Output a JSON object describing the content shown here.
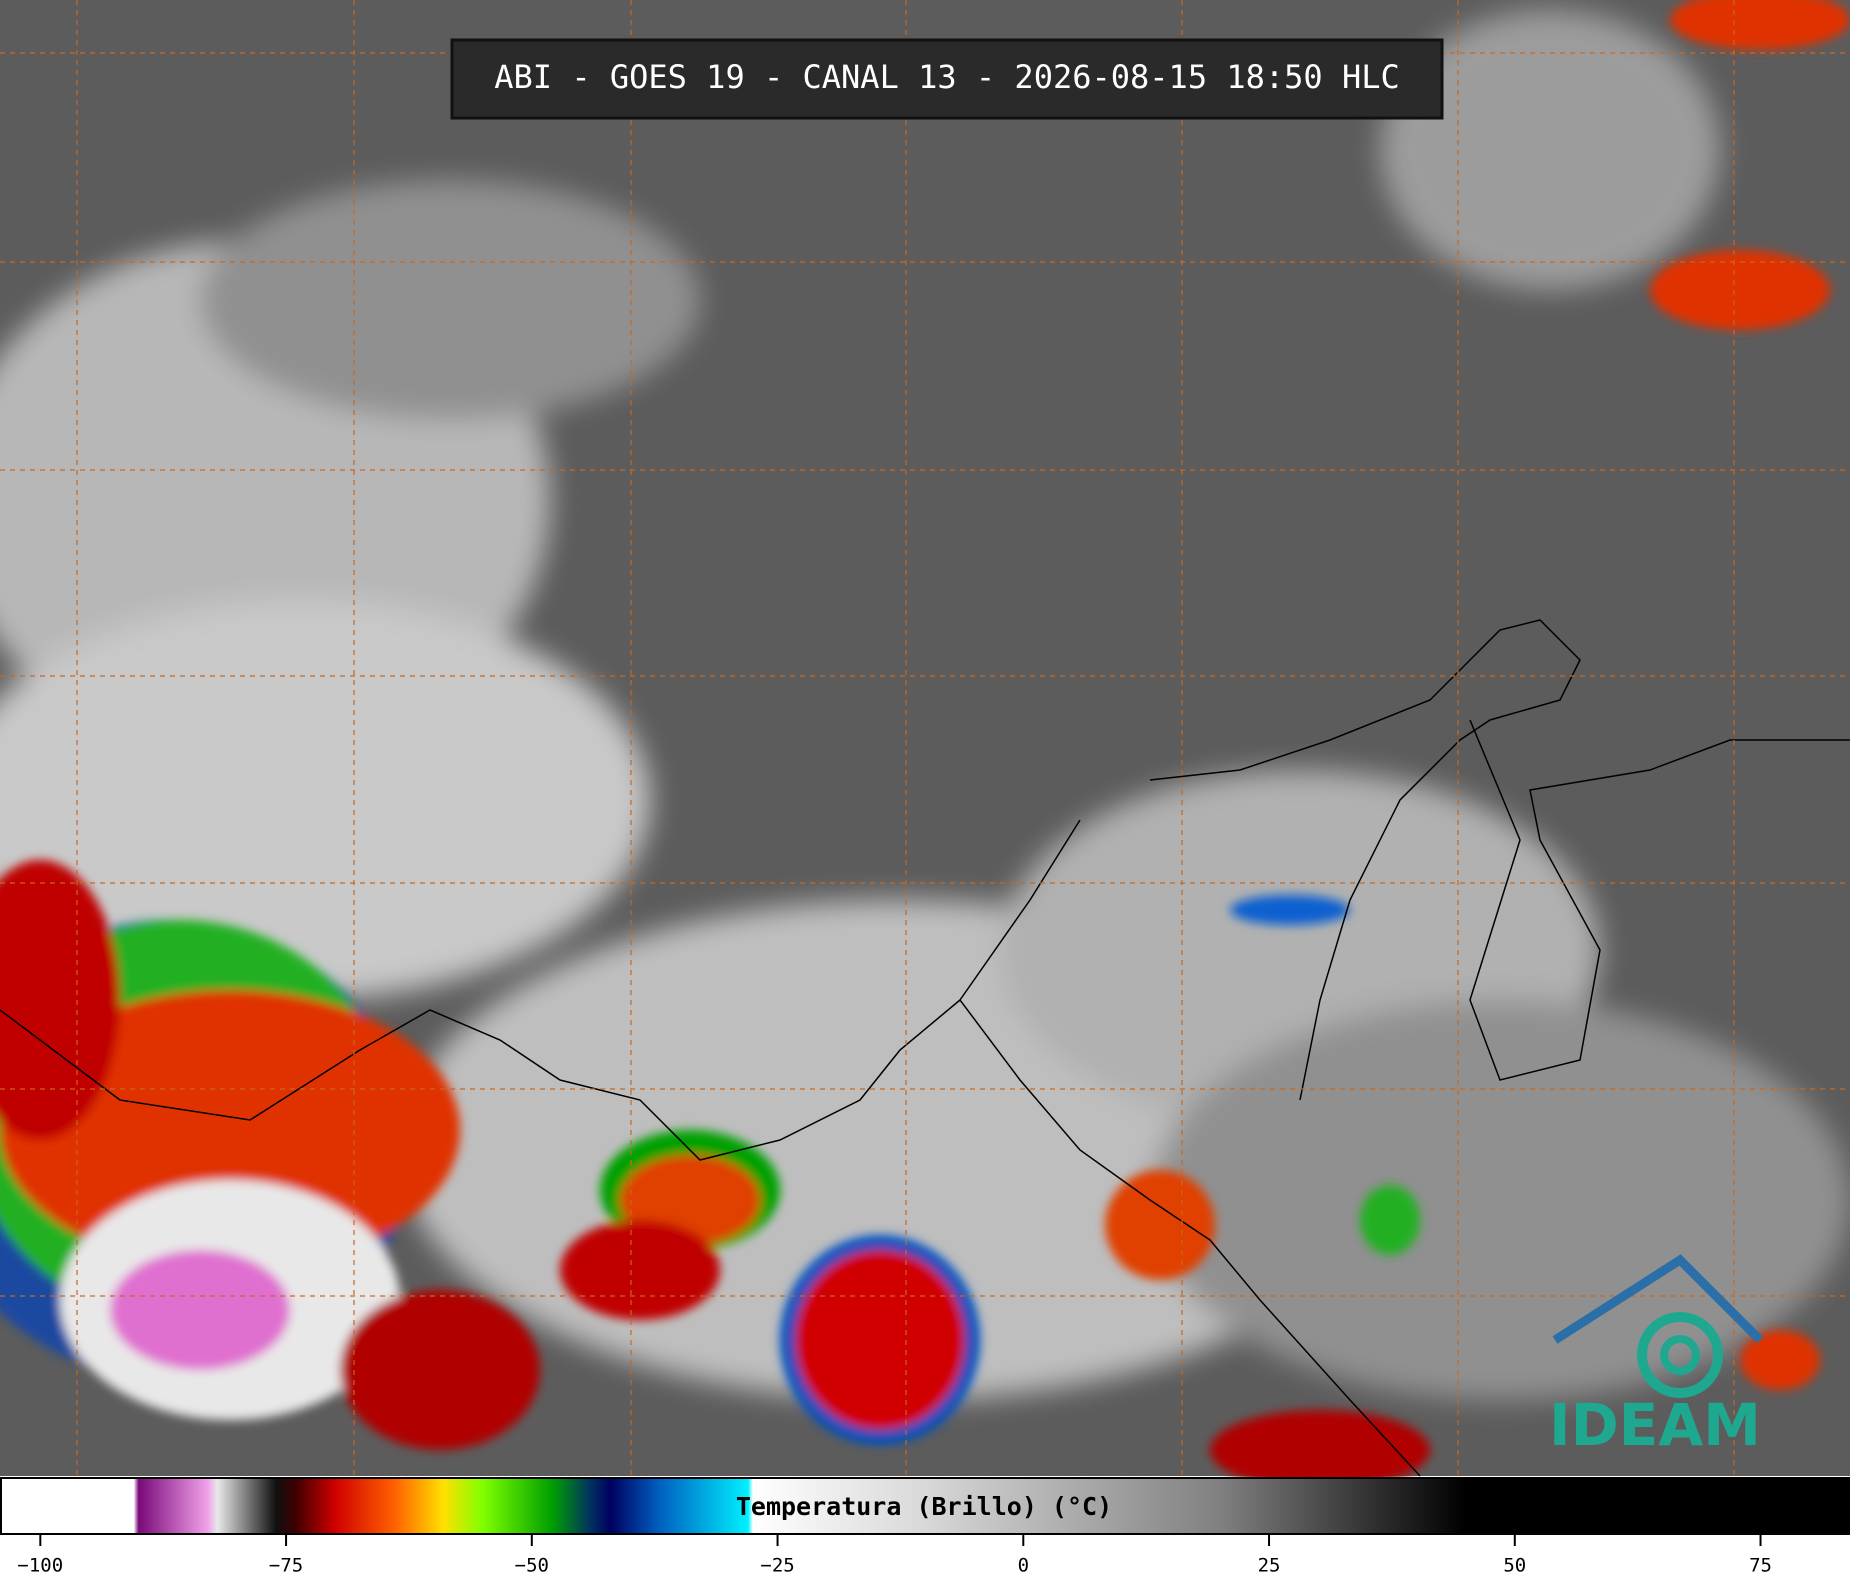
{
  "header": {
    "title": "ABI - GOES 19 - CANAL 13 - 2026-08-15 18:50 HLC"
  },
  "logo": {
    "text": "IDEAM"
  },
  "colorbar": {
    "label": "Temperatura (Brillo) (°C)",
    "lim": [
      -104,
      84
    ],
    "ticks": [
      {
        "value": -100,
        "label": "−100"
      },
      {
        "value": -75,
        "label": "−75"
      },
      {
        "value": -50,
        "label": "−50"
      },
      {
        "value": -25,
        "label": "−25"
      },
      0,
      25,
      50,
      75
    ],
    "colormap": [
      {
        "value": -104,
        "color": "#ffffff"
      },
      {
        "value": -90.5,
        "color": "#ffffff"
      },
      {
        "value": -90,
        "color": "#7a0a7a"
      },
      {
        "value": -83,
        "color": "#f0a0e8"
      },
      {
        "value": -82,
        "color": "#e8e8e8"
      },
      {
        "value": -76,
        "color": "#101010"
      },
      {
        "value": -74,
        "color": "#400000"
      },
      {
        "value": -70,
        "color": "#d00000"
      },
      {
        "value": -64,
        "color": "#ff6000"
      },
      {
        "value": -59,
        "color": "#ffe000"
      },
      {
        "value": -55,
        "color": "#80ff00"
      },
      {
        "value": -48,
        "color": "#00a000"
      },
      {
        "value": -44,
        "color": "#003060"
      },
      {
        "value": -42,
        "color": "#000060"
      },
      {
        "value": -37,
        "color": "#0060c0"
      },
      {
        "value": -28,
        "color": "#00f0ff"
      },
      {
        "value": -27.5,
        "color": "#ffffff"
      },
      {
        "value": -10,
        "color": "#d8d8d8"
      },
      {
        "value": 20,
        "color": "#808080"
      },
      {
        "value": 45,
        "color": "#000000"
      },
      {
        "value": 84,
        "color": "#000000"
      }
    ]
  }
}
